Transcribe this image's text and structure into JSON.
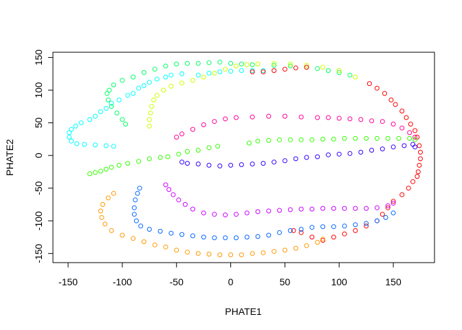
{
  "chart_data": {
    "type": "scatter",
    "title": "",
    "xlabel": "PHATE1",
    "ylabel": "PHATE2",
    "xlim": [
      -164,
      188
    ],
    "ylim": [
      -164,
      158
    ],
    "xticks": [
      "-150",
      "-100",
      "-50",
      "0",
      "50",
      "100",
      "150"
    ],
    "yticks": [
      "-150",
      "-100",
      "-50",
      "0",
      "50",
      "100",
      "150"
    ],
    "grid": false,
    "marker": "open-circle",
    "series": [
      {
        "color": "#00FFFF",
        "x": [
          -108,
          -115,
          -125,
          -135,
          -142,
          -147,
          -149,
          -149,
          -147,
          -143,
          -138,
          -130,
          -125,
          -120,
          -115,
          -110,
          -103,
          -95,
          -90,
          -85,
          -80,
          -75,
          -68,
          -60,
          -55,
          -45,
          -30,
          -20,
          -10,
          0,
          10,
          20,
          30
        ],
        "y": [
          14,
          15,
          16,
          17,
          18,
          22,
          28,
          35,
          40,
          45,
          50,
          55,
          60,
          67,
          72,
          80,
          85,
          92,
          95,
          103,
          107,
          112,
          117,
          120,
          123,
          125,
          123,
          126,
          128,
          129,
          130,
          130,
          130
        ]
      },
      {
        "color": "#00FF66",
        "x": [
          -97,
          -100,
          -105,
          -110,
          -113,
          -114,
          -112,
          -108,
          -100,
          -90,
          -80,
          -70,
          -60,
          -50,
          -40,
          -30,
          -20,
          -10,
          0,
          10,
          20,
          40,
          55,
          70,
          80,
          90,
          100,
          110
        ],
        "y": [
          48,
          55,
          65,
          75,
          85,
          95,
          100,
          108,
          115,
          120,
          127,
          132,
          137,
          140,
          141,
          141,
          142,
          143,
          141,
          140,
          139,
          138,
          137,
          135,
          133,
          130,
          127,
          123
        ]
      },
      {
        "color": "#CCFF00",
        "x": [
          -75,
          -75,
          -74,
          -73,
          -71,
          -68,
          -62,
          -55,
          -45,
          -35,
          -25,
          -15,
          -5,
          5,
          15,
          25,
          40,
          55,
          70,
          85,
          100,
          115
        ],
        "y": [
          45,
          55,
          65,
          75,
          85,
          92,
          100,
          106,
          111,
          115,
          120,
          126,
          132,
          137,
          139,
          140,
          141,
          140,
          138,
          135,
          130,
          120
        ]
      },
      {
        "color": "#FF0000",
        "x": [
          20,
          30,
          40,
          50,
          60,
          70,
          128,
          135,
          142,
          148,
          152,
          158,
          162,
          166,
          170,
          172,
          174,
          175,
          175,
          174,
          173,
          172,
          168,
          164,
          158,
          150,
          145,
          140,
          135,
          125,
          115,
          105,
          95,
          85,
          75,
          65,
          58
        ],
        "y": [
          128,
          128,
          130,
          132,
          134,
          135,
          110,
          103,
          95,
          85,
          78,
          68,
          58,
          48,
          38,
          28,
          15,
          5,
          -5,
          -15,
          -25,
          -32,
          -40,
          -50,
          -60,
          -70,
          -80,
          -90,
          -100,
          -108,
          -115,
          -120,
          -125,
          -130,
          -125,
          -118,
          -115
        ]
      },
      {
        "color": "#FF0099",
        "x": [
          -50,
          -45,
          -35,
          -25,
          -15,
          -5,
          5,
          20,
          35,
          50,
          65,
          80,
          90,
          100,
          110,
          120,
          130,
          140,
          150,
          158,
          165,
          170
        ],
        "y": [
          28,
          33,
          40,
          47,
          52,
          56,
          58,
          59,
          60,
          60,
          59,
          58,
          58,
          57,
          56,
          55,
          53,
          52,
          48,
          42,
          35,
          28
        ]
      },
      {
        "color": "#33FF00",
        "x": [
          -130,
          -125,
          -120,
          -115,
          -110,
          -103,
          -95,
          -85,
          -75,
          -65,
          -58,
          -48,
          -40,
          -30,
          -20,
          -12,
          17,
          25,
          35,
          45,
          55,
          65,
          75,
          85,
          95,
          105,
          115,
          125,
          135,
          145,
          155,
          165,
          170
        ],
        "y": [
          -28,
          -26,
          -24,
          -21,
          -18,
          -15,
          -12,
          -9,
          -5,
          -3,
          -2,
          2,
          6,
          8,
          12,
          14,
          19,
          22,
          23,
          24,
          24,
          24,
          24,
          25,
          25,
          26,
          26,
          26,
          26,
          26,
          26,
          26,
          24
        ]
      },
      {
        "color": "#3300FF",
        "x": [
          -45,
          -40,
          -30,
          -20,
          -10,
          0,
          10,
          20,
          30,
          40,
          50,
          60,
          70,
          80,
          90,
          100,
          110,
          120,
          130,
          140,
          150,
          160,
          168,
          170
        ],
        "y": [
          -10,
          -12,
          -13,
          -15,
          -16,
          -15,
          -14,
          -13,
          -12,
          -10,
          -8,
          -5,
          -3,
          -2,
          1,
          2,
          3,
          5,
          8,
          10,
          13,
          15,
          17,
          13
        ]
      },
      {
        "color": "#CC00FF",
        "x": [
          -60,
          -57,
          -53,
          -48,
          -42,
          -35,
          -25,
          -15,
          -5,
          5,
          15,
          25,
          35,
          45,
          55,
          65,
          75,
          85,
          95,
          105,
          115,
          125,
          135,
          145,
          150
        ],
        "y": [
          -45,
          -52,
          -60,
          -68,
          -75,
          -82,
          -88,
          -90,
          -91,
          -90,
          -88,
          -86,
          -85,
          -84,
          -83,
          -82,
          -82,
          -81,
          -81,
          -81,
          -81,
          -81,
          -80,
          -77,
          -73
        ]
      },
      {
        "color": "#0066FF",
        "x": [
          -84,
          -86,
          -88,
          -89,
          -89,
          -87,
          -83,
          -75,
          -65,
          -55,
          -45,
          -35,
          -25,
          -15,
          -5,
          5,
          15,
          25,
          35,
          45,
          55,
          65,
          75,
          85,
          95,
          105,
          115,
          125,
          135,
          143,
          150
        ],
        "y": [
          -50,
          -58,
          -68,
          -80,
          -90,
          -100,
          -108,
          -113,
          -116,
          -119,
          -121,
          -123,
          -125,
          -126,
          -126,
          -126,
          -125,
          -124,
          -122,
          -118,
          -115,
          -113,
          -110,
          -109,
          -109,
          -108,
          -106,
          -104,
          -100,
          -95,
          -88
        ]
      },
      {
        "color": "#FF9900",
        "x": [
          -108,
          -113,
          -118,
          -120,
          -119,
          -116,
          -110,
          -100,
          -90,
          -80,
          -70,
          -60,
          -50,
          -40,
          -30,
          -20,
          -10,
          0,
          10,
          20,
          30,
          40,
          50,
          60,
          70,
          80,
          85
        ],
        "y": [
          -58,
          -65,
          -75,
          -85,
          -95,
          -105,
          -115,
          -122,
          -127,
          -132,
          -137,
          -140,
          -145,
          -148,
          -150,
          -151,
          -152,
          -152,
          -152,
          -150,
          -149,
          -147,
          -145,
          -142,
          -138,
          -133,
          -128
        ]
      }
    ]
  }
}
